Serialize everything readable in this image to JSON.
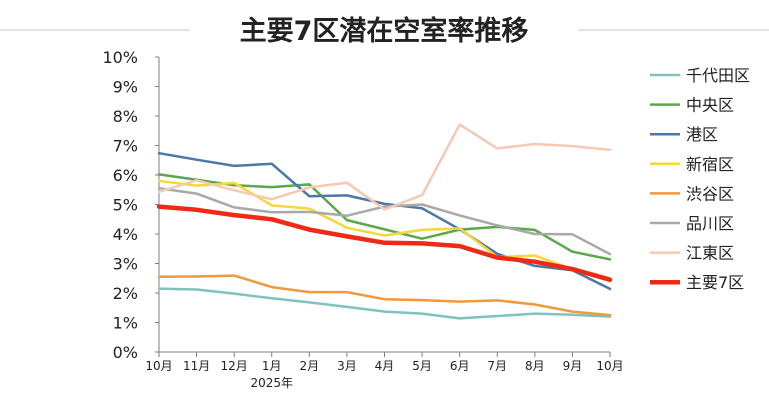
{
  "chart_data": {
    "type": "line",
    "title": "主要7区潜在空室率推移",
    "categories": [
      "10月",
      "11月",
      "12月",
      "1月",
      "2月",
      "3月",
      "4月",
      "5月",
      "6月",
      "7月",
      "8月",
      "9月",
      "10月"
    ],
    "year_label": "2025年",
    "ylim": [
      0,
      10
    ],
    "yticks": [
      "0%",
      "1%",
      "2%",
      "3%",
      "4%",
      "5%",
      "6%",
      "7%",
      "8%",
      "9%",
      "10%"
    ],
    "grid": false,
    "legend_position": "right",
    "series": [
      {
        "name": "千代田区",
        "color": "#7ec4bc",
        "width": 2.5,
        "values": [
          2.15,
          2.12,
          1.98,
          1.82,
          1.68,
          1.53,
          1.37,
          1.3,
          1.14,
          1.22,
          1.3,
          1.26,
          1.2
        ]
      },
      {
        "name": "中央区",
        "color": "#5aa84a",
        "width": 2.5,
        "values": [
          6.02,
          5.84,
          5.65,
          5.59,
          5.68,
          4.47,
          4.16,
          3.84,
          4.15,
          4.24,
          4.14,
          3.4,
          3.14
        ]
      },
      {
        "name": "港区",
        "color": "#4a78a8",
        "width": 2.5,
        "values": [
          6.74,
          6.52,
          6.31,
          6.38,
          5.28,
          5.31,
          5.02,
          4.87,
          4.16,
          3.33,
          2.92,
          2.77,
          2.14
        ]
      },
      {
        "name": "新宿区",
        "color": "#f5d63b",
        "width": 2.5,
        "values": [
          5.8,
          5.64,
          5.73,
          4.97,
          4.86,
          4.21,
          3.95,
          4.14,
          4.19,
          3.22,
          3.27,
          2.8,
          2.4
        ]
      },
      {
        "name": "渋谷区",
        "color": "#ef9a3c",
        "width": 2.5,
        "values": [
          2.55,
          2.56,
          2.59,
          2.2,
          2.03,
          2.03,
          1.79,
          1.76,
          1.71,
          1.75,
          1.61,
          1.37,
          1.25
        ]
      },
      {
        "name": "品川区",
        "color": "#a9a9a9",
        "width": 2.5,
        "values": [
          5.55,
          5.37,
          4.9,
          4.74,
          4.75,
          4.62,
          4.93,
          5.0,
          4.63,
          4.29,
          4.0,
          3.99,
          3.32
        ]
      },
      {
        "name": "江東区",
        "color": "#f6c9b5",
        "width": 2.5,
        "values": [
          5.43,
          5.82,
          5.48,
          5.18,
          5.58,
          5.74,
          4.83,
          5.32,
          7.71,
          6.9,
          7.05,
          6.98,
          6.85
        ]
      },
      {
        "name": "主要7区",
        "color": "#ee2a16",
        "width": 4.5,
        "values": [
          4.93,
          4.82,
          4.64,
          4.5,
          4.15,
          3.92,
          3.7,
          3.68,
          3.59,
          3.2,
          3.06,
          2.81,
          2.45
        ]
      }
    ]
  }
}
